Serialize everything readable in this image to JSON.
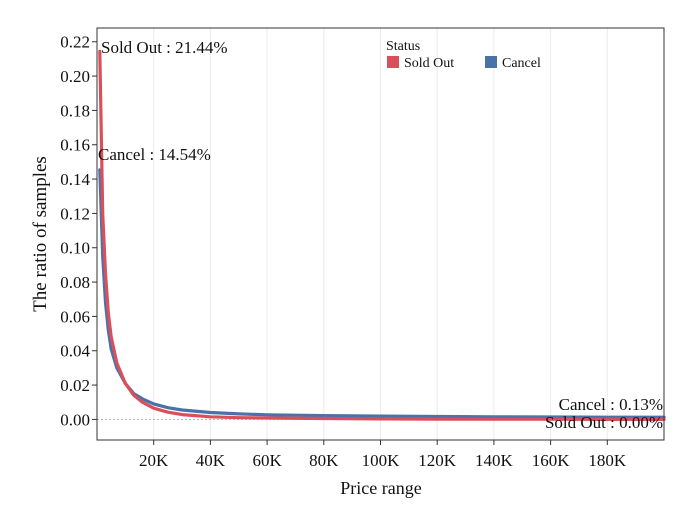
{
  "chart_data": {
    "type": "line",
    "title": "",
    "xlabel": "Price range",
    "ylabel": "The ratio of samples",
    "xlim": [
      0,
      200000
    ],
    "ylim": [
      -0.012,
      0.228
    ],
    "x_ticks": [
      20000,
      40000,
      60000,
      80000,
      100000,
      120000,
      140000,
      160000,
      180000
    ],
    "x_tick_labels": [
      "20K",
      "40K",
      "60K",
      "80K",
      "100K",
      "120K",
      "140K",
      "160K",
      "180K"
    ],
    "y_ticks": [
      0.0,
      0.02,
      0.04,
      0.06,
      0.08,
      0.1,
      0.12,
      0.14,
      0.16,
      0.18,
      0.2,
      0.22
    ],
    "y_tick_labels": [
      "0.00",
      "0.02",
      "0.04",
      "0.06",
      "0.08",
      "0.10",
      "0.12",
      "0.14",
      "0.16",
      "0.18",
      "0.20",
      "0.22"
    ],
    "grid": "vertical",
    "legend": {
      "title": "Status",
      "position": "top-right"
    },
    "series": [
      {
        "name": "Sold Out",
        "color": "#d9505b",
        "x": [
          1000,
          2000,
          3000,
          4000,
          5000,
          7000,
          10000,
          13000,
          16000,
          20000,
          25000,
          30000,
          40000,
          50000,
          60000,
          80000,
          100000,
          120000,
          140000,
          160000,
          180000,
          200000
        ],
        "y": [
          0.2144,
          0.12,
          0.085,
          0.062,
          0.048,
          0.033,
          0.021,
          0.014,
          0.01,
          0.0065,
          0.0042,
          0.0028,
          0.0015,
          0.001,
          0.0008,
          0.0005,
          0.0003,
          0.0002,
          0.0001,
          0.0001,
          0.0,
          0.0
        ]
      },
      {
        "name": "Cancel",
        "color": "#4a72a8",
        "x": [
          1000,
          2000,
          3000,
          4000,
          5000,
          7000,
          10000,
          13000,
          16000,
          20000,
          25000,
          30000,
          40000,
          50000,
          60000,
          80000,
          100000,
          120000,
          140000,
          160000,
          180000,
          200000
        ],
        "y": [
          0.1454,
          0.095,
          0.068,
          0.052,
          0.041,
          0.03,
          0.021,
          0.015,
          0.012,
          0.009,
          0.0068,
          0.0055,
          0.004,
          0.0032,
          0.0027,
          0.0022,
          0.0019,
          0.0017,
          0.0015,
          0.0014,
          0.0013,
          0.0013
        ]
      }
    ],
    "annotations": [
      {
        "text": "Sold Out : 21.44%",
        "series": "Sold Out",
        "at": "start"
      },
      {
        "text": "Cancel : 14.54%",
        "series": "Cancel",
        "at": "start"
      },
      {
        "text": "Cancel : 0.13%",
        "series": "Cancel",
        "at": "end"
      },
      {
        "text": "Sold Out : 0.00%",
        "series": "Sold Out",
        "at": "end"
      }
    ]
  }
}
